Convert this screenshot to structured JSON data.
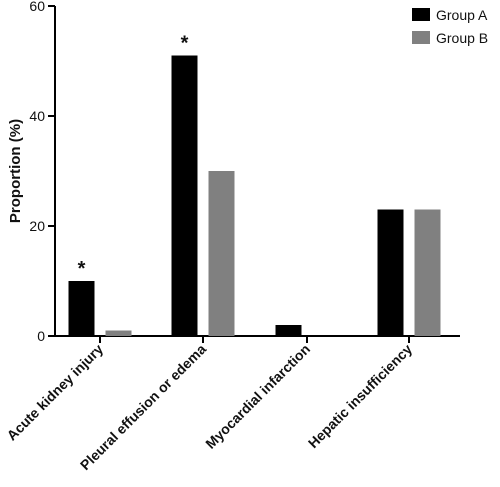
{
  "chart_data": {
    "type": "bar",
    "title": "",
    "xlabel": "",
    "ylabel": "Proportion (%)",
    "ylim": [
      0,
      60
    ],
    "yticks": [
      0,
      20,
      40,
      60
    ],
    "categories": [
      "Acute kidney injury",
      "Pleural effusion or edema",
      "Myocardial infarction",
      "Hepatic insufficiency"
    ],
    "series": [
      {
        "name": "Group A",
        "color": "#000000",
        "values": [
          10,
          51,
          2,
          23
        ]
      },
      {
        "name": "Group B",
        "color": "#808080",
        "values": [
          1,
          30,
          0,
          23
        ]
      }
    ],
    "annotations": [
      {
        "text": "*",
        "category": "Acute kidney injury",
        "series": "Group A"
      },
      {
        "text": "*",
        "category": "Pleural effusion or edema",
        "series": "Group A"
      }
    ],
    "legend": {
      "position": "top-right"
    },
    "grid": false
  }
}
